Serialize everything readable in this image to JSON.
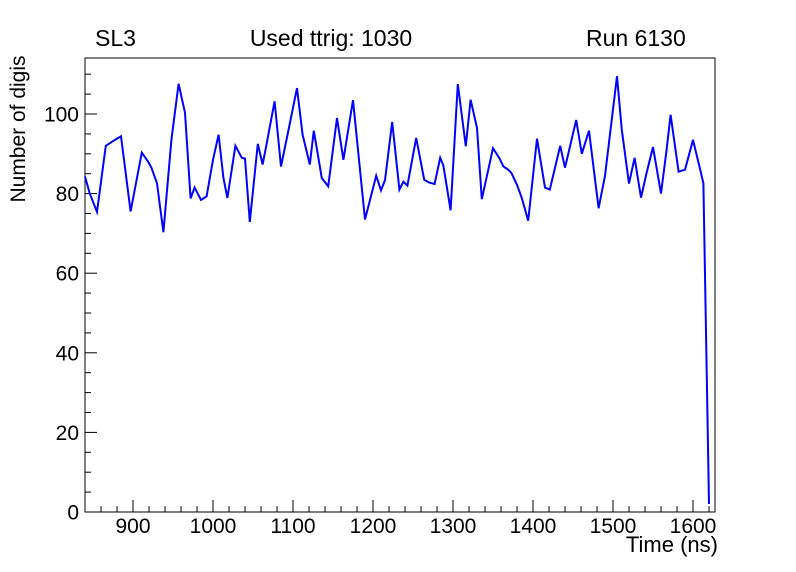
{
  "chart_data": {
    "type": "line",
    "title_left": "SL3",
    "title": "Used ttrig: 1030",
    "title_right": "Run 6130",
    "xlabel": "Time (ns)",
    "ylabel": "Number of digis",
    "xlim": [
      840,
      1627.5
    ],
    "ylim": [
      0,
      114.07
    ],
    "x_major_ticks": [
      900,
      1000,
      1100,
      1200,
      1300,
      1400,
      1500,
      1600
    ],
    "x_minor_step": 20,
    "y_major_ticks": [
      0,
      20,
      40,
      60,
      80,
      100
    ],
    "y_minor_step": 5,
    "grid": false,
    "legend": null,
    "line_color": "#0000ff",
    "frame_color": "#000000",
    "background": "#ffffff",
    "series": [
      {
        "name": "number-of-digis-vs-time",
        "x": [
          840,
          846,
          855,
          866,
          875,
          885,
          897,
          911,
          919,
          923,
          930,
          938,
          948,
          957,
          965,
          972,
          977,
          985,
          992,
          1000,
          1007,
          1013,
          1018,
          1028,
          1036,
          1040,
          1046,
          1056,
          1062,
          1066,
          1077,
          1085,
          1094,
          1105,
          1112,
          1121,
          1126,
          1136,
          1144,
          1155,
          1163,
          1175,
          1190,
          1204,
          1210,
          1215,
          1224,
          1233,
          1238,
          1243,
          1254,
          1264,
          1270,
          1277,
          1284,
          1288,
          1297,
          1306,
          1316,
          1322,
          1330,
          1336,
          1350,
          1358,
          1363,
          1369,
          1373,
          1380,
          1386,
          1394,
          1405,
          1415,
          1421,
          1434,
          1440,
          1454,
          1461,
          1470,
          1482,
          1490,
          1505,
          1511,
          1520,
          1527,
          1535,
          1542,
          1550,
          1560,
          1567,
          1572,
          1582,
          1590,
          1600,
          1609,
          1613,
          1620
        ],
        "y": [
          84.3,
          80,
          75.4,
          92,
          93.2,
          94.4,
          75.5,
          90.3,
          88,
          86.5,
          82.6,
          70.3,
          93.5,
          107.6,
          100.3,
          78.8,
          81.5,
          78.4,
          79.3,
          88.5,
          94.8,
          84,
          78.9,
          92,
          89,
          88.8,
          72.9,
          92.5,
          87.3,
          91.4,
          103.2,
          86.8,
          95.6,
          106.5,
          94.8,
          87.3,
          95.8,
          83.9,
          81.8,
          99,
          88.5,
          103.5,
          73.5,
          84.5,
          80.8,
          83.4,
          98,
          81,
          83,
          82,
          94,
          83.5,
          82.8,
          82.4,
          89,
          87,
          75.8,
          107.5,
          91.9,
          103.6,
          96.5,
          78.6,
          91.4,
          88.9,
          86.8,
          86,
          85.2,
          82.2,
          78.9,
          73.2,
          93.8,
          81.5,
          81,
          92,
          86.5,
          98.5,
          90,
          95.8,
          76.3,
          84.5,
          109.5,
          96,
          82.5,
          89,
          79,
          85.2,
          91.7,
          80,
          91,
          99.8,
          85.5,
          86,
          93.5,
          86,
          82.6,
          2
        ]
      }
    ]
  }
}
